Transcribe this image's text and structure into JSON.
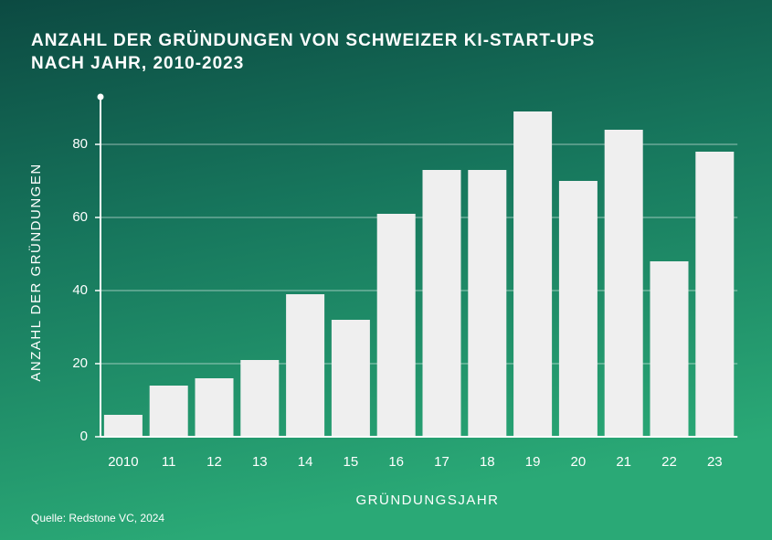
{
  "chart_data": {
    "type": "bar",
    "title": [
      "ANZAHL DER GRÜNDUNGEN VON SCHWEIZER KI-START-UPS",
      "NACH JAHR, 2010-2023"
    ],
    "categories": [
      "2010",
      "11",
      "12",
      "13",
      "14",
      "15",
      "16",
      "17",
      "18",
      "19",
      "20",
      "21",
      "22",
      "23"
    ],
    "values": [
      6,
      14,
      16,
      21,
      39,
      32,
      61,
      73,
      73,
      89,
      70,
      84,
      48,
      78
    ],
    "color": "#efefef",
    "ylim": [
      0,
      93
    ],
    "yticks": [
      0,
      20,
      40,
      60,
      80
    ],
    "grid": true,
    "ylabel": "ANZAHL DER GRÜNDUNGEN",
    "xlabel": "GRÜNDUNGSJAHR",
    "source": "Quelle: Redstone VC, 2024"
  }
}
